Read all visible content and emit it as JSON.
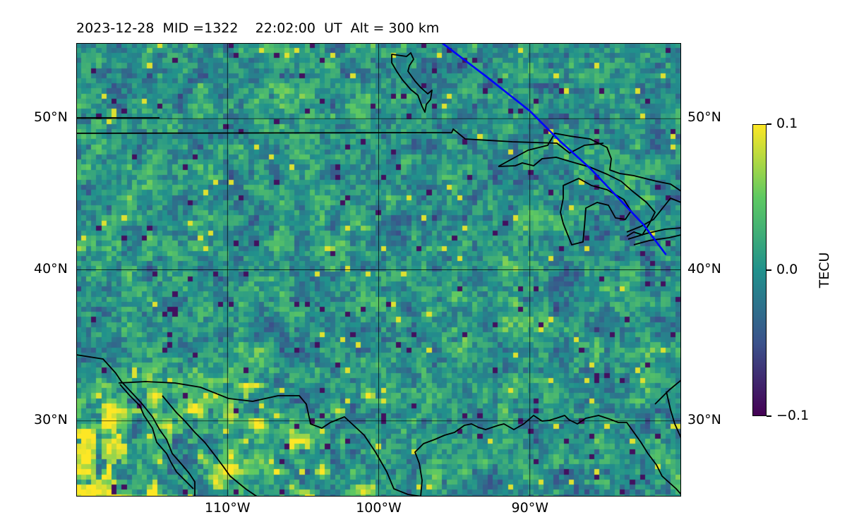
{
  "title": {
    "date": "2023-12-28",
    "mid": "MID =1322",
    "time": "22:02:00  UT",
    "alt": "Alt = 300 km"
  },
  "map": {
    "extent": {
      "lon_min": -120,
      "lon_max": -80,
      "lat_min": 25,
      "lat_max": 55
    },
    "lat_ticks": [
      {
        "value": 50,
        "label": "50°N"
      },
      {
        "value": 40,
        "label": "40°N"
      },
      {
        "value": 30,
        "label": "30°N"
      }
    ],
    "lon_ticks": [
      {
        "value": -110,
        "label": "110°W"
      },
      {
        "value": -100,
        "label": "100°W"
      },
      {
        "value": -90,
        "label": "90°W"
      }
    ],
    "coastline_color": "#000000",
    "track_color": "#0000ff",
    "track": [
      [
        -95.8,
        55
      ],
      [
        -92.9,
        52.8
      ],
      [
        -90,
        50.5
      ],
      [
        -88,
        48.5
      ],
      [
        -86,
        46.7
      ],
      [
        -84.2,
        44.8
      ],
      [
        -82.5,
        43
      ],
      [
        -81,
        41
      ]
    ]
  },
  "colorbar": {
    "label": "TECU",
    "ticks": [
      {
        "value": 0.1,
        "label": "0.1"
      },
      {
        "value": 0.0,
        "label": "0.0"
      },
      {
        "value": -0.1,
        "label": "−0.1"
      }
    ],
    "min": -0.1,
    "max": 0.1,
    "colormap": "viridis",
    "stops": [
      "#440154",
      "#3b528b",
      "#21918c",
      "#5ec962",
      "#fde725"
    ]
  }
}
